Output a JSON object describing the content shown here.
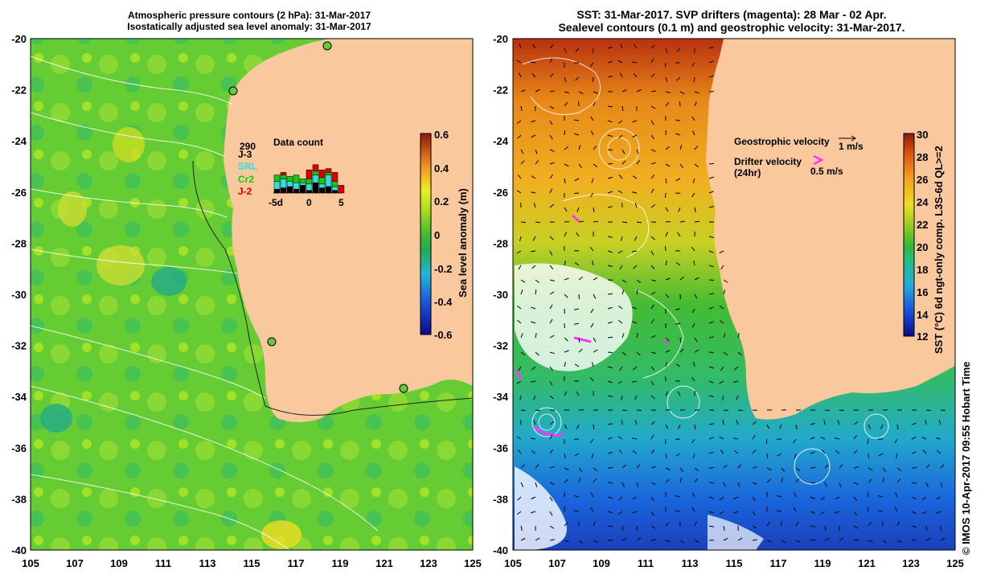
{
  "left_panel": {
    "title_line1": "Atmospheric pressure contours (2 hPa): 31-Mar-2017",
    "title_line2": "Isostatically adjusted sea level anomaly: 31-Mar-2017",
    "colorbar": {
      "label": "Sea level anomaly (m)",
      "ticks": [
        "0.6",
        "0.4",
        "0.2",
        "0",
        "-0.2",
        "-0.4",
        "-0.6"
      ]
    },
    "data_count": {
      "title": "Data count",
      "total": "290",
      "missions": [
        {
          "name": "J-3",
          "color": "#000000"
        },
        {
          "name": "SRL",
          "color": "#33dddd"
        },
        {
          "name": "Cr2",
          "color": "#11cc11"
        },
        {
          "name": "J-2",
          "color": "#dd0000"
        }
      ],
      "axis_labels": [
        "-5d",
        "0",
        "5"
      ]
    }
  },
  "right_panel": {
    "title_line1": "SST: 31-Mar-2017. SVP drifters (magenta): 28 Mar - 02 Apr.",
    "title_line2": "Sealevel contours (0.1 m) and geostrophic velocity: 31-Mar-2017.",
    "geostrophic_label": "Geostrophic velocity",
    "geostrophic_scale": "1 m/s",
    "drifter_label_1": "Drifter velocity",
    "drifter_label_2": "(24hr)",
    "drifter_scale": "0.5 m/s",
    "colorbar": {
      "label": "SST (°C) 6d ngt-only comp. L3S-6d QL>=2",
      "ticks": [
        "30",
        "28",
        "26",
        "24",
        "22",
        "20",
        "18",
        "16",
        "14",
        "12"
      ]
    }
  },
  "axes": {
    "lat_ticks": [
      "-20",
      "-22",
      "-24",
      "-26",
      "-28",
      "-30",
      "-32",
      "-34",
      "-36",
      "-38",
      "-40"
    ],
    "lon_ticks": [
      "105",
      "107",
      "109",
      "111",
      "113",
      "115",
      "117",
      "119",
      "121",
      "123",
      "125"
    ]
  },
  "credit": "© IMOS 10-Apr-2017 09:55 Hobart Time",
  "colors": {
    "land": "#f9c89c",
    "ssh_mid": "#66cc33",
    "drifter": "#ff33ff"
  }
}
